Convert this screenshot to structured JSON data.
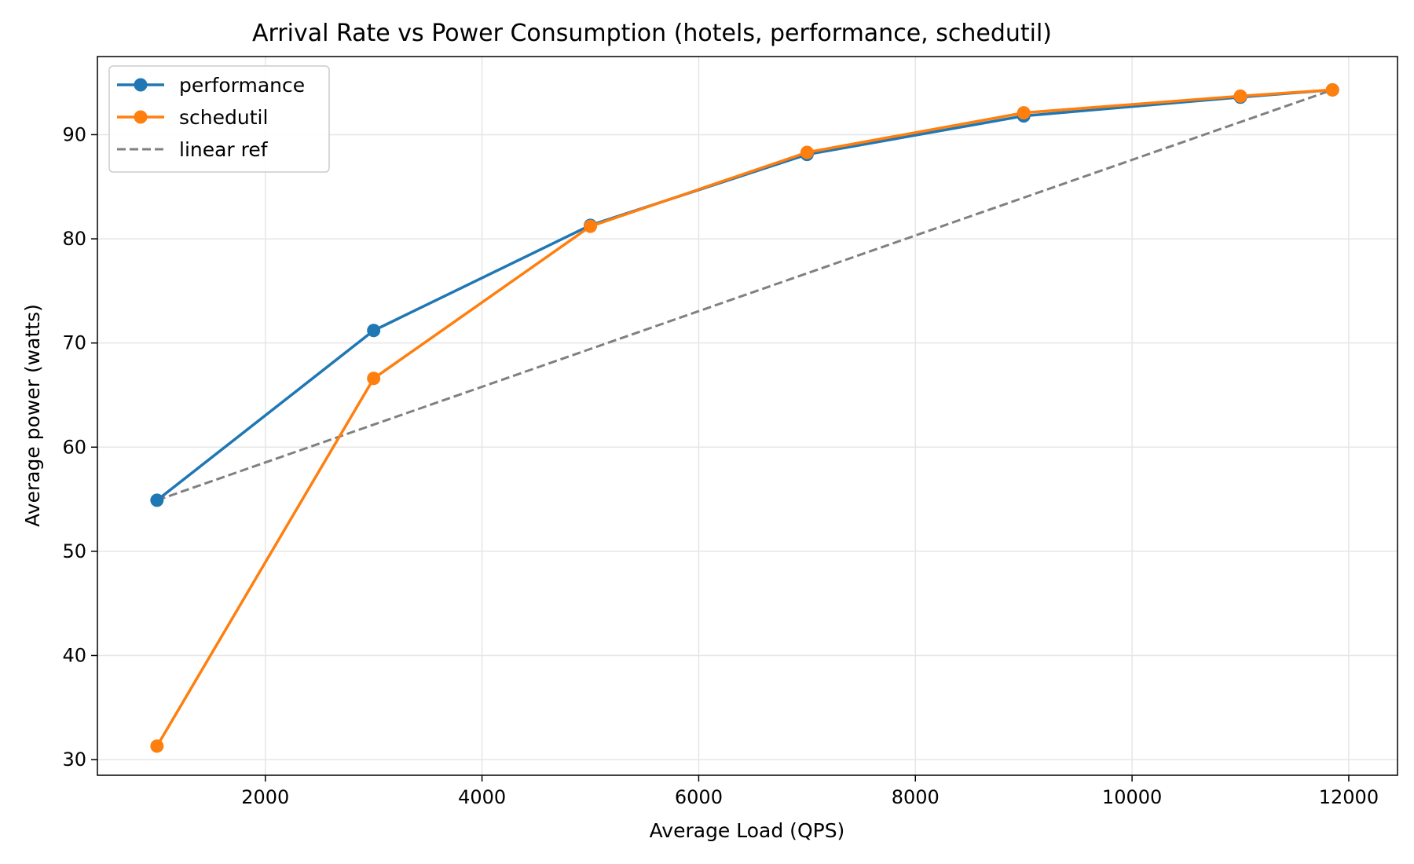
{
  "chart_data": {
    "type": "line",
    "title": "Arrival Rate vs Power Consumption (hotels, performance, schedutil)",
    "xlabel": "Average Load (QPS)",
    "ylabel": "Average power (watts)",
    "xlim": [
      450,
      12450
    ],
    "ylim": [
      28.5,
      97.5
    ],
    "xticks": [
      2000,
      4000,
      6000,
      8000,
      10000,
      12000
    ],
    "xtick_labels": [
      "2000",
      "4000",
      "6000",
      "8000",
      "10000",
      "12000"
    ],
    "yticks": [
      30,
      40,
      50,
      60,
      70,
      80,
      90
    ],
    "ytick_labels": [
      "30",
      "40",
      "50",
      "60",
      "70",
      "80",
      "90"
    ],
    "grid": true,
    "legend_position": "top-left",
    "series": [
      {
        "name": "performance",
        "color": "#1f77b4",
        "style": "solid",
        "marker": "circle",
        "x": [
          1000,
          3000,
          5000,
          7000,
          9000,
          11000,
          11850
        ],
        "y": [
          54.9,
          71.2,
          81.3,
          88.1,
          91.8,
          93.6,
          94.3
        ]
      },
      {
        "name": "schedutil",
        "color": "#ff7f0e",
        "style": "solid",
        "marker": "circle",
        "x": [
          1000,
          3000,
          5000,
          7000,
          9000,
          11000,
          11850
        ],
        "y": [
          31.3,
          66.6,
          81.2,
          88.3,
          92.1,
          93.7,
          94.3
        ]
      },
      {
        "name": "linear ref",
        "color": "#808080",
        "style": "dashed",
        "marker": "none",
        "x": [
          1000,
          11850
        ],
        "y": [
          54.9,
          94.3
        ]
      }
    ]
  }
}
